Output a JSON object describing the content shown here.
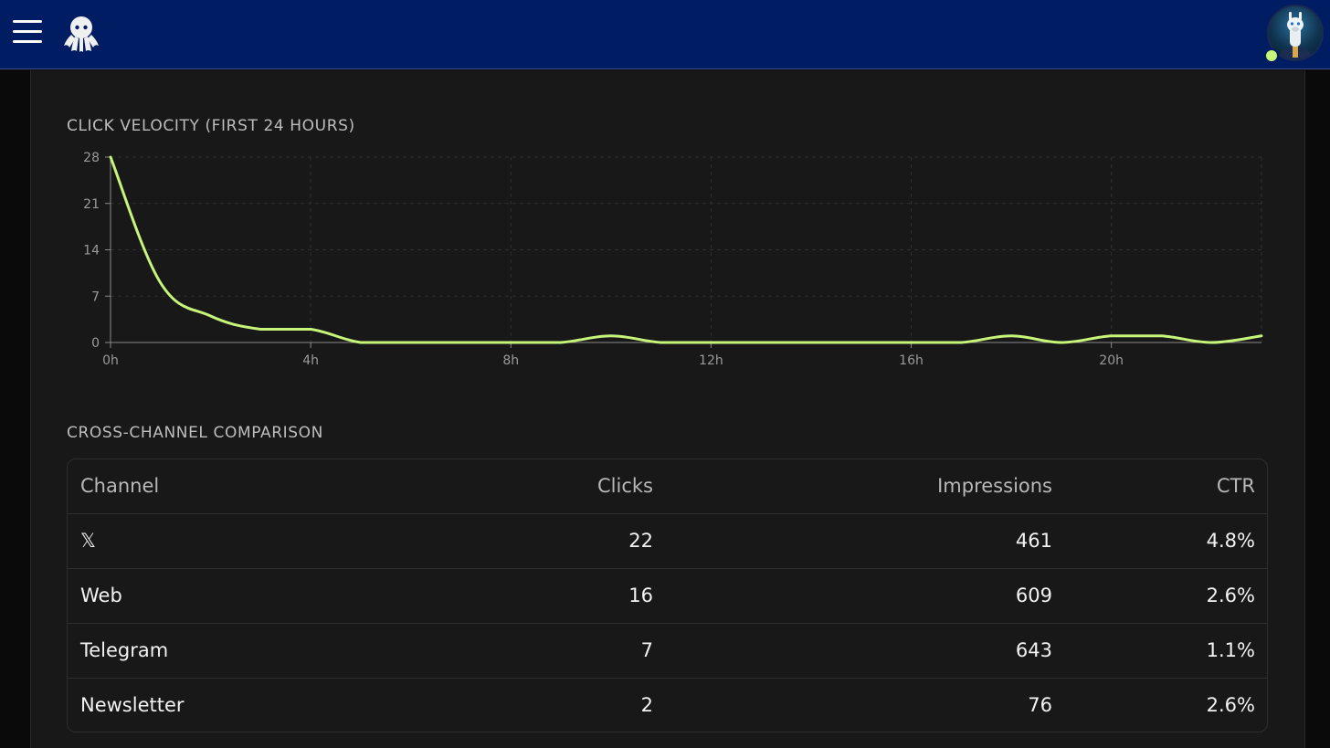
{
  "header": {
    "menu_icon": "hamburger-menu-icon",
    "logo_icon": "octopus-logo-icon",
    "avatar_icon": "user-avatar-llama-icon",
    "status_color": "#c6f57a",
    "background_color": "#001d63"
  },
  "velocity": {
    "title": "CLICK VELOCITY (FIRST 24 HOURS)",
    "chart_data": {
      "type": "line",
      "title": "CLICK VELOCITY (FIRST 24 HOURS)",
      "xlabel": "",
      "ylabel": "",
      "x": [
        0,
        1,
        2,
        3,
        4,
        5,
        6,
        7,
        8,
        9,
        10,
        11,
        12,
        13,
        14,
        15,
        16,
        17,
        18,
        19,
        20,
        21,
        22,
        23
      ],
      "series": [
        {
          "values": [
            28,
            9,
            4,
            2,
            2,
            0,
            0,
            0,
            0,
            0,
            1,
            0,
            0,
            0,
            0,
            0,
            0,
            0,
            1,
            0,
            1,
            1,
            0,
            1
          ]
        }
      ],
      "x_ticks": [
        {
          "value": 0,
          "label": "0h"
        },
        {
          "value": 4,
          "label": "4h"
        },
        {
          "value": 8,
          "label": "8h"
        },
        {
          "value": 12,
          "label": "12h"
        },
        {
          "value": 16,
          "label": "16h"
        },
        {
          "value": 20,
          "label": "20h"
        }
      ],
      "y_ticks": [
        0,
        7,
        14,
        21,
        28
      ],
      "xlim": [
        0,
        23
      ],
      "ylim": [
        0,
        28
      ],
      "grid": true,
      "line_color": "#c6f57a"
    }
  },
  "comparison": {
    "title": "CROSS-CHANNEL COMPARISON",
    "columns": {
      "channel": "Channel",
      "clicks": "Clicks",
      "impressions": "Impressions",
      "ctr": "CTR"
    },
    "rows": [
      {
        "channel": "𝕏",
        "clicks": "22",
        "impressions": "461",
        "ctr": "4.8%"
      },
      {
        "channel": "Web",
        "clicks": "16",
        "impressions": "609",
        "ctr": "2.6%"
      },
      {
        "channel": "Telegram",
        "clicks": "7",
        "impressions": "643",
        "ctr": "1.1%"
      },
      {
        "channel": "Newsletter",
        "clicks": "2",
        "impressions": "76",
        "ctr": "2.6%"
      }
    ]
  }
}
